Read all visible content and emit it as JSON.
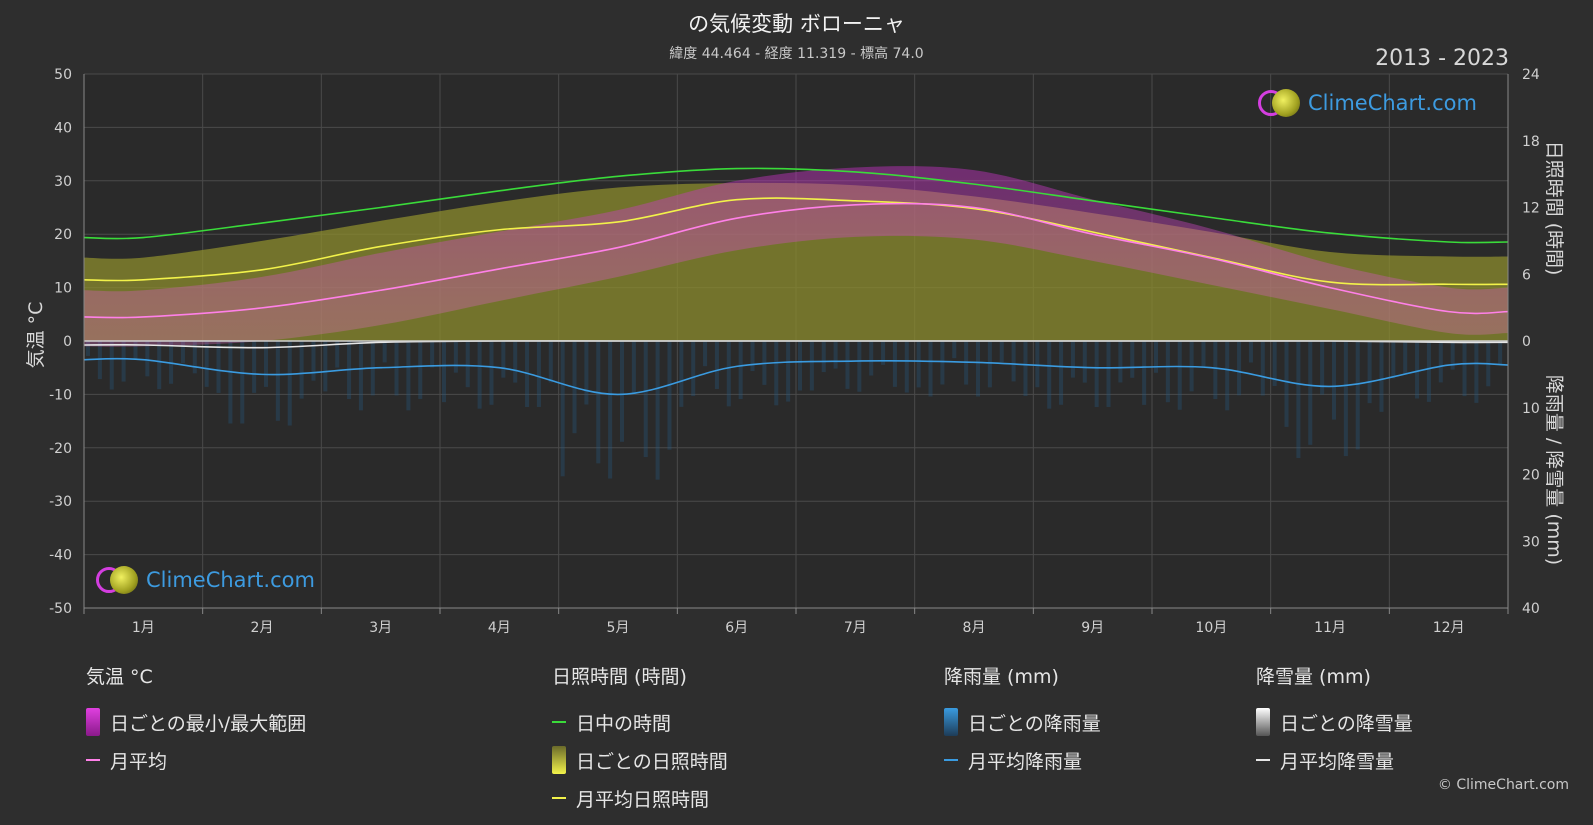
{
  "header": {
    "title": "の気候変動 ボローニャ",
    "subtitle": "緯度 44.464 - 経度 11.319 - 標高 74.0",
    "year_range": "2013 - 2023"
  },
  "logo_text": "ClimeChart.com",
  "copyright": "© ClimeChart.com",
  "colors": {
    "background": "#2e2e2e",
    "daylight": "#3adb3a",
    "sunshine_avg": "#f2f24a",
    "sunshine_fill": "#8c8c2e",
    "temp_range": "#d63cc8",
    "temp_avg": "#ff80e8",
    "rain_avg": "#3a9be0",
    "rain_fill": "#245a82",
    "snow_avg": "#e6e6e6"
  },
  "legend": {
    "temperature": {
      "title": "気温 °C",
      "range": "日ごとの最小/最大範囲",
      "avg": "月平均"
    },
    "sunshine": {
      "title": "日照時間 (時間)",
      "daylight": "日中の時間",
      "daily": "日ごとの日照時間",
      "avg": "月平均日照時間"
    },
    "rain": {
      "title": "降雨量 (mm)",
      "daily": "日ごとの降雨量",
      "avg": "月平均降雨量"
    },
    "snow": {
      "title": "降雪量 (mm)",
      "daily": "日ごとの降雪量",
      "avg": "月平均降雪量"
    }
  },
  "chart_data": {
    "type": "line",
    "categories": [
      "1月",
      "2月",
      "3月",
      "4月",
      "5月",
      "6月",
      "7月",
      "8月",
      "9月",
      "10月",
      "11月",
      "12月"
    ],
    "ylabel_left": "気温 °C",
    "ylabel_right_top": "日照時間 (時間)",
    "ylabel_right_bottom": "降雨量 / 降雪量 (mm)",
    "ylim_left": [
      -50,
      50
    ],
    "yticks_left": [
      50,
      40,
      30,
      20,
      10,
      0,
      -10,
      -20,
      -30,
      -40,
      -50
    ],
    "ylim_right_sun": [
      0,
      24
    ],
    "yticks_right_sun": [
      24,
      18,
      12,
      6,
      0
    ],
    "ylim_right_precip": [
      0,
      40
    ],
    "yticks_right_precip": [
      10,
      20,
      30,
      40
    ],
    "grid": true,
    "series": [
      {
        "name": "日中の時間",
        "axis": "sun",
        "values": [
          9.3,
          10.6,
          12.0,
          13.5,
          14.8,
          15.5,
          15.2,
          14.1,
          12.6,
          11.1,
          9.7,
          8.9
        ]
      },
      {
        "name": "月平均日照時間",
        "axis": "sun",
        "values": [
          5.5,
          6.4,
          8.5,
          10.0,
          10.7,
          12.7,
          12.6,
          11.9,
          9.8,
          7.5,
          5.3,
          5.1
        ]
      },
      {
        "name": "日ごとの日照時間",
        "axis": "sun",
        "values": [
          7.5,
          9.0,
          10.8,
          12.5,
          13.8,
          14.2,
          14.0,
          13.0,
          11.5,
          9.8,
          8.0,
          7.6
        ]
      },
      {
        "name": "月平均",
        "axis": "temp",
        "values": [
          4.5,
          6.2,
          9.5,
          13.5,
          17.5,
          23.0,
          25.5,
          25.0,
          20.0,
          15.5,
          10.0,
          5.5
        ]
      },
      {
        "name": "日ごとの最小/最大範囲 (最小)",
        "axis": "temp",
        "values": [
          -1.0,
          0.0,
          3.0,
          7.5,
          12.0,
          17.0,
          19.5,
          19.0,
          15.0,
          10.5,
          6.0,
          1.5
        ]
      },
      {
        "name": "日ごとの最小/最大範囲 (最大)",
        "axis": "temp",
        "values": [
          9.5,
          12.0,
          16.5,
          20.5,
          24.5,
          30.0,
          32.5,
          32.0,
          26.5,
          21.0,
          14.5,
          10.0
        ]
      },
      {
        "name": "月平均降雨量",
        "axis": "precip",
        "values": [
          2.8,
          5.0,
          4.0,
          4.0,
          8.0,
          3.8,
          3.0,
          3.2,
          4.0,
          4.0,
          6.8,
          3.6
        ]
      },
      {
        "name": "月平均降雪量",
        "axis": "precip",
        "values": [
          0.6,
          1.0,
          0.2,
          0,
          0,
          0,
          0,
          0,
          0,
          0,
          0,
          0.2
        ]
      }
    ]
  }
}
